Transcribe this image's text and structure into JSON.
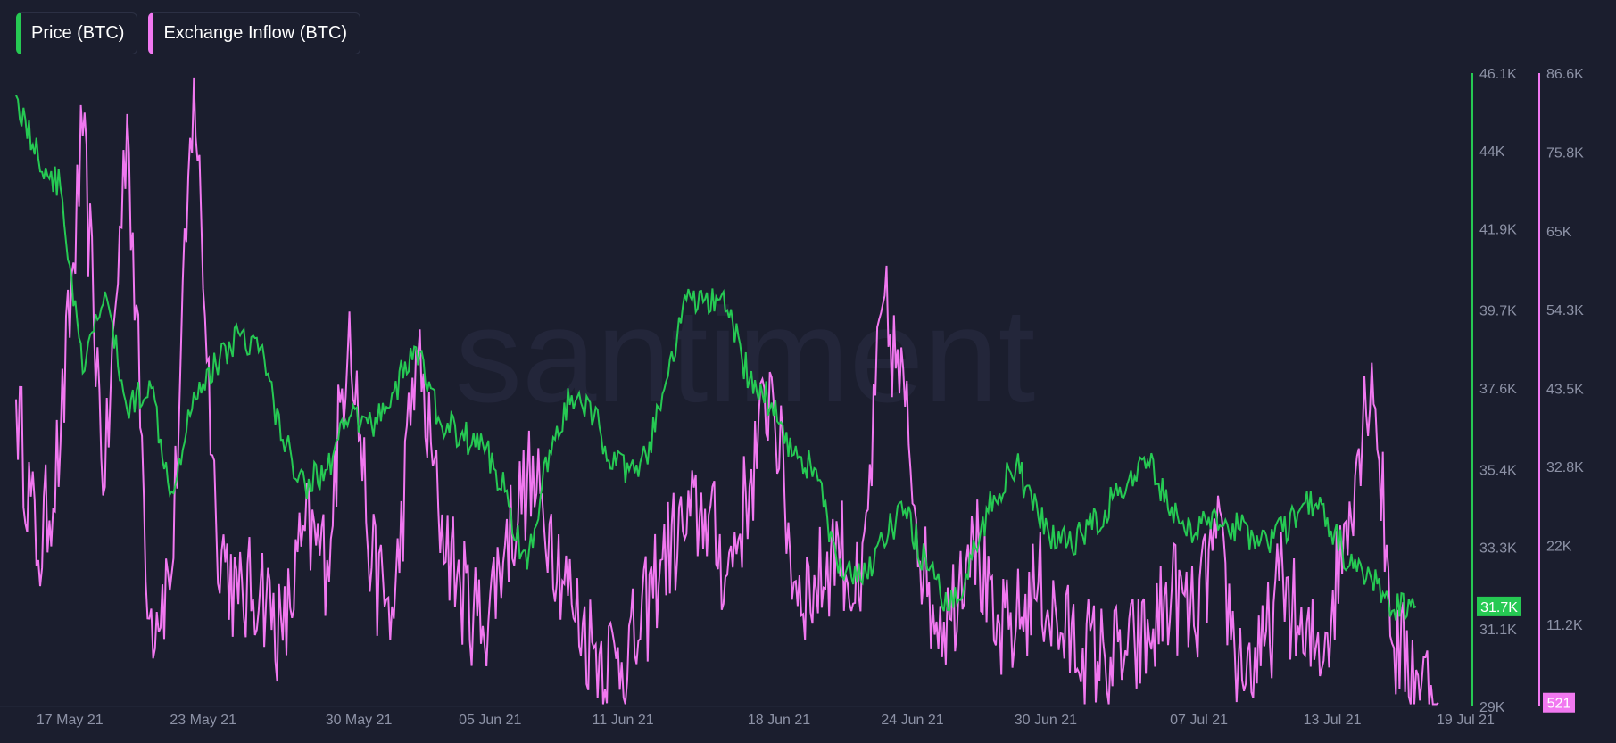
{
  "legend": {
    "price_label": "Price (BTC)",
    "inflow_label": "Exchange Inflow (BTC)"
  },
  "watermark": "santiment",
  "colors": {
    "price": "#26c953",
    "inflow": "#f178f0",
    "background": "#1b1e2e",
    "axis_text": "#8d92a6"
  },
  "chart_data": {
    "type": "line",
    "x_labels": [
      "17 May 21",
      "23 May 21",
      "30 May 21",
      "05 Jun 21",
      "11 Jun 21",
      "18 Jun 21",
      "24 Jun 21",
      "30 Jun 21",
      "07 Jul 21",
      "13 Jul 21",
      "19 Jul 21"
    ],
    "x_range": [
      "2021-05-16",
      "2021-07-19"
    ],
    "y_price": {
      "ticks": [
        "46.1K",
        "44K",
        "41.9K",
        "39.7K",
        "37.6K",
        "35.4K",
        "33.3K",
        "31.1K",
        "29K"
      ],
      "range": [
        29000,
        46100
      ]
    },
    "y_inflow": {
      "ticks": [
        "86.6K",
        "75.8K",
        "65K",
        "54.3K",
        "43.5K",
        "32.8K",
        "22K",
        "11.2K"
      ],
      "range": [
        0,
        86600
      ]
    },
    "current_values": {
      "price": "31.7K",
      "inflow": "521"
    },
    "series": [
      {
        "name": "Price (BTC)",
        "axis": "right-inner",
        "points": [
          [
            "2021-05-16",
            45500
          ],
          [
            "2021-05-17",
            43800
          ],
          [
            "2021-05-18",
            43000
          ],
          [
            "2021-05-19",
            38000
          ],
          [
            "2021-05-20",
            40200
          ],
          [
            "2021-05-21",
            37000
          ],
          [
            "2021-05-22",
            37800
          ],
          [
            "2021-05-23",
            34800
          ],
          [
            "2021-05-24",
            37500
          ],
          [
            "2021-05-25",
            38200
          ],
          [
            "2021-05-26",
            39100
          ],
          [
            "2021-05-27",
            38700
          ],
          [
            "2021-05-28",
            36200
          ],
          [
            "2021-05-29",
            35000
          ],
          [
            "2021-05-30",
            35400
          ],
          [
            "2021-05-31",
            36800
          ],
          [
            "2021-06-01",
            36600
          ],
          [
            "2021-06-02",
            37500
          ],
          [
            "2021-06-03",
            38700
          ],
          [
            "2021-06-04",
            36800
          ],
          [
            "2021-06-05",
            36300
          ],
          [
            "2021-06-06",
            36100
          ],
          [
            "2021-06-07",
            34800
          ],
          [
            "2021-06-08",
            32700
          ],
          [
            "2021-06-09",
            35900
          ],
          [
            "2021-06-10",
            37400
          ],
          [
            "2021-06-11",
            36800
          ],
          [
            "2021-06-12",
            35500
          ],
          [
            "2021-06-13",
            35200
          ],
          [
            "2021-06-14",
            37000
          ],
          [
            "2021-06-15",
            39800
          ],
          [
            "2021-06-16",
            40000
          ],
          [
            "2021-06-17",
            39700
          ],
          [
            "2021-06-18",
            37800
          ],
          [
            "2021-06-19",
            37200
          ],
          [
            "2021-06-20",
            35800
          ],
          [
            "2021-06-21",
            35400
          ],
          [
            "2021-06-22",
            32600
          ],
          [
            "2021-06-23",
            32400
          ],
          [
            "2021-06-24",
            33500
          ],
          [
            "2021-06-25",
            34300
          ],
          [
            "2021-06-26",
            32700
          ],
          [
            "2021-06-27",
            31600
          ],
          [
            "2021-06-28",
            33000
          ],
          [
            "2021-06-29",
            34700
          ],
          [
            "2021-06-30",
            35500
          ],
          [
            "2021-07-01",
            34100
          ],
          [
            "2021-07-02",
            33400
          ],
          [
            "2021-07-03",
            33600
          ],
          [
            "2021-07-04",
            34300
          ],
          [
            "2021-07-05",
            35000
          ],
          [
            "2021-07-06",
            35500
          ],
          [
            "2021-07-07",
            34400
          ],
          [
            "2021-07-08",
            33600
          ],
          [
            "2021-07-09",
            34200
          ],
          [
            "2021-07-10",
            33800
          ],
          [
            "2021-07-11",
            33500
          ],
          [
            "2021-07-12",
            33700
          ],
          [
            "2021-07-13",
            34500
          ],
          [
            "2021-07-14",
            34100
          ],
          [
            "2021-07-15",
            32800
          ],
          [
            "2021-07-16",
            32400
          ],
          [
            "2021-07-17",
            31600
          ],
          [
            "2021-07-18",
            31700
          ]
        ]
      },
      {
        "name": "Exchange Inflow (BTC)",
        "axis": "right-outer",
        "points": [
          [
            "2021-05-16",
            42000
          ],
          [
            "2021-05-17",
            20000
          ],
          [
            "2021-05-18",
            36000
          ],
          [
            "2021-05-19",
            78000
          ],
          [
            "2021-05-20",
            30000
          ],
          [
            "2021-05-21",
            81000
          ],
          [
            "2021-05-22",
            12000
          ],
          [
            "2021-05-23",
            18000
          ],
          [
            "2021-05-24",
            86000
          ],
          [
            "2021-05-25",
            25000
          ],
          [
            "2021-05-26",
            14000
          ],
          [
            "2021-05-27",
            17000
          ],
          [
            "2021-05-28",
            9000
          ],
          [
            "2021-05-29",
            24000
          ],
          [
            "2021-05-30",
            20000
          ],
          [
            "2021-05-31",
            54000
          ],
          [
            "2021-06-01",
            19000
          ],
          [
            "2021-06-02",
            12000
          ],
          [
            "2021-06-03",
            49000
          ],
          [
            "2021-06-04",
            27000
          ],
          [
            "2021-06-05",
            16000
          ],
          [
            "2021-06-06",
            11000
          ],
          [
            "2021-06-07",
            22000
          ],
          [
            "2021-06-08",
            31000
          ],
          [
            "2021-06-09",
            25000
          ],
          [
            "2021-06-10",
            14000
          ],
          [
            "2021-06-11",
            8000
          ],
          [
            "2021-06-12",
            6500
          ],
          [
            "2021-06-13",
            9000
          ],
          [
            "2021-06-14",
            20000
          ],
          [
            "2021-06-15",
            24000
          ],
          [
            "2021-06-16",
            27000
          ],
          [
            "2021-06-17",
            18000
          ],
          [
            "2021-06-18",
            30000
          ],
          [
            "2021-06-19",
            45000
          ],
          [
            "2021-06-20",
            17000
          ],
          [
            "2021-06-21",
            16000
          ],
          [
            "2021-06-22",
            23000
          ],
          [
            "2021-06-23",
            13000
          ],
          [
            "2021-06-24",
            55000
          ],
          [
            "2021-06-25",
            41000
          ],
          [
            "2021-06-26",
            15000
          ],
          [
            "2021-06-27",
            12000
          ],
          [
            "2021-06-28",
            26000
          ],
          [
            "2021-06-29",
            9000
          ],
          [
            "2021-06-30",
            11000
          ],
          [
            "2021-07-01",
            17000
          ],
          [
            "2021-07-02",
            10000
          ],
          [
            "2021-07-03",
            8000
          ],
          [
            "2021-07-04",
            6500
          ],
          [
            "2021-07-05",
            7000
          ],
          [
            "2021-07-06",
            9000
          ],
          [
            "2021-07-07",
            16000
          ],
          [
            "2021-07-08",
            11000
          ],
          [
            "2021-07-09",
            23000
          ],
          [
            "2021-07-10",
            6000
          ],
          [
            "2021-07-11",
            5500
          ],
          [
            "2021-07-12",
            18000
          ],
          [
            "2021-07-13",
            7000
          ],
          [
            "2021-07-14",
            10000
          ],
          [
            "2021-07-15",
            28000
          ],
          [
            "2021-07-16",
            47000
          ],
          [
            "2021-07-17",
            8000
          ],
          [
            "2021-07-18",
            5000
          ],
          [
            "2021-07-19",
            521
          ]
        ]
      }
    ]
  }
}
